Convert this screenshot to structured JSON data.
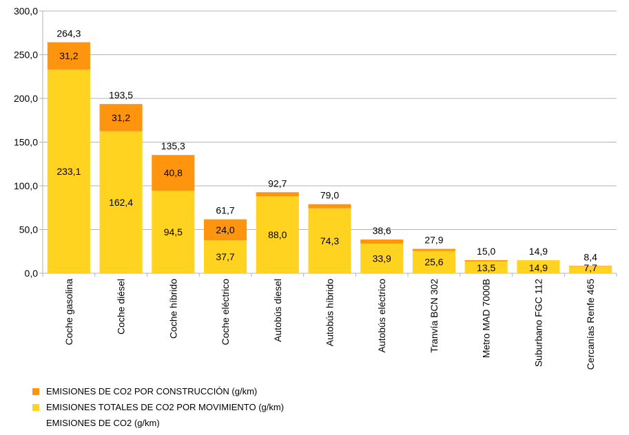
{
  "chart_data": {
    "type": "bar",
    "stacked": true,
    "categories": [
      "Coche gasolina",
      "Coche diésel",
      "Coche híbrido",
      "Coche eléctrico",
      "Autobús diesel",
      "Autobús híbrido",
      "Autobús eléctrico",
      "Tranvía BCN 302",
      "Metro MAD 7000B",
      "Suburbano FGC 112",
      "Cercanías Renfe 465"
    ],
    "series": [
      {
        "name": "EMISIONES TOTALES DE CO2 POR MOVIMIENTO (g/km)",
        "color": "#FFD320",
        "values": [
          233.1,
          162.4,
          94.5,
          37.7,
          88.0,
          74.3,
          33.9,
          25.6,
          13.5,
          14.9,
          7.7
        ],
        "labels": [
          "233,1",
          "162,4",
          "94,5",
          "37,7",
          "88,0",
          "74,3",
          "33,9",
          "25,6",
          "13,5",
          "14,9",
          "7,7"
        ]
      },
      {
        "name": "EMISIONES DE CO2 POR CONSTRUCCIÓN (g/km)",
        "color": "#FF950E",
        "values": [
          31.2,
          31.2,
          40.8,
          24.0,
          4.7,
          4.7,
          4.7,
          2.3,
          1.5,
          0.0,
          0.7
        ],
        "labels": [
          "31,2",
          "31,2",
          "40,8",
          "24,0",
          "",
          "",
          "",
          "",
          "",
          "",
          ""
        ]
      }
    ],
    "totals": {
      "name": "EMISIONES DE CO2 (g/km)",
      "values": [
        264.3,
        193.5,
        135.3,
        61.7,
        92.7,
        79.0,
        38.6,
        27.9,
        15.0,
        14.9,
        8.4
      ],
      "labels": [
        "264,3",
        "193,5",
        "135,3",
        "61,7",
        "92,7",
        "79,0",
        "38,6",
        "27,9",
        "15,0",
        "14,9",
        "8,4"
      ]
    },
    "title": "",
    "xlabel": "",
    "ylabel": "",
    "ylim": [
      0,
      300
    ],
    "yticks": [
      0,
      50,
      100,
      150,
      200,
      250,
      300
    ],
    "ytick_labels": [
      "0,0",
      "50,0",
      "100,0",
      "150,0",
      "200,0",
      "250,0",
      "300,0"
    ],
    "grid": true,
    "legend_position": "bottom-left"
  },
  "colors": {
    "grid": "#b3b3b3",
    "axis": "#b3b3b3",
    "text": "#000000"
  }
}
